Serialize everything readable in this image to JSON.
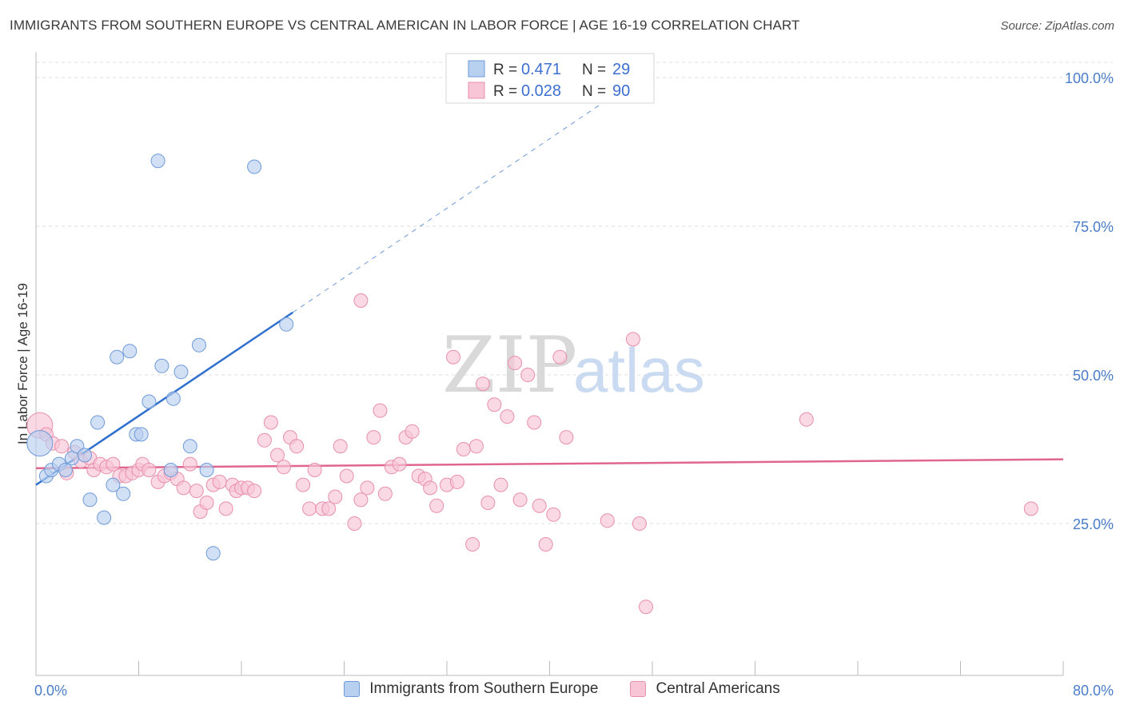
{
  "title": "IMMIGRANTS FROM SOUTHERN EUROPE VS CENTRAL AMERICAN IN LABOR FORCE | AGE 16-19 CORRELATION CHART",
  "source": "Source: ZipAtlas.com",
  "watermark": {
    "zip": "ZIP",
    "atlas": "atlas"
  },
  "legend": {
    "r_label": "R =",
    "n_label": "N =",
    "items": [
      {
        "r": "0.471",
        "n": "29"
      },
      {
        "r": "0.028",
        "n": "90"
      }
    ]
  },
  "colors": {
    "blue_fill": "#b8d0f0",
    "blue_stroke": "#6f9ad8",
    "blue_line": "#2f6fcf",
    "pink_fill": "#f7c5d5",
    "pink_stroke": "#e88fac",
    "pink_line": "#e0668f",
    "tick_text": "#4a7cc8",
    "grid": "#dddddd"
  },
  "chart_data": {
    "type": "scatter",
    "title": "IMMIGRANTS FROM SOUTHERN EUROPE VS CENTRAL AMERICAN IN LABOR FORCE | AGE 16-19 CORRELATION CHART",
    "xlabel": "",
    "ylabel": "In Labor Force | Age 16-19",
    "xlim": [
      0,
      80
    ],
    "ylim": [
      0,
      102
    ],
    "x_tick_labels": [
      "0.0%",
      "80.0%"
    ],
    "y_ticks": [
      25,
      50,
      75,
      100
    ],
    "y_tick_labels": [
      "25.0%",
      "50.0%",
      "75.0%",
      "100.0%"
    ],
    "grid": true,
    "legend_position": "top-center",
    "series": [
      {
        "name": "Immigrants from Southern Europe",
        "color": "#b8d0f0",
        "points": [
          [
            0.3,
            38.5
          ],
          [
            0.8,
            33.0
          ],
          [
            1.2,
            34.0
          ],
          [
            1.8,
            35.0
          ],
          [
            2.3,
            34.0
          ],
          [
            2.8,
            36.0
          ],
          [
            3.2,
            38.0
          ],
          [
            3.8,
            36.5
          ],
          [
            4.2,
            29.0
          ],
          [
            4.8,
            42.0
          ],
          [
            5.3,
            26.0
          ],
          [
            6.0,
            31.5
          ],
          [
            6.3,
            53.0
          ],
          [
            6.8,
            30.0
          ],
          [
            7.3,
            54.0
          ],
          [
            7.8,
            40.0
          ],
          [
            8.2,
            40.0
          ],
          [
            8.8,
            45.5
          ],
          [
            9.5,
            86.0
          ],
          [
            9.8,
            51.5
          ],
          [
            10.7,
            46.0
          ],
          [
            10.5,
            34.0
          ],
          [
            11.3,
            50.5
          ],
          [
            12.0,
            38.0
          ],
          [
            12.7,
            55.0
          ],
          [
            13.3,
            34.0
          ],
          [
            13.8,
            20.0
          ],
          [
            17.0,
            85.0
          ],
          [
            19.5,
            58.5
          ]
        ],
        "trend": {
          "x": [
            0,
            20.0
          ],
          "y": [
            31.5,
            60.5
          ],
          "dashed_to": [
            45.0,
            97.0
          ]
        }
      },
      {
        "name": "Central Americans",
        "color": "#f7c5d5",
        "points": [
          [
            0.3,
            41.5
          ],
          [
            0.8,
            40.0
          ],
          [
            1.3,
            38.5
          ],
          [
            2.0,
            38.0
          ],
          [
            2.4,
            33.5
          ],
          [
            3.0,
            37.0
          ],
          [
            3.5,
            35.5
          ],
          [
            4.2,
            36.0
          ],
          [
            4.5,
            34.0
          ],
          [
            5.0,
            35.0
          ],
          [
            5.5,
            34.5
          ],
          [
            6.0,
            35.0
          ],
          [
            6.5,
            33.0
          ],
          [
            7.0,
            33.0
          ],
          [
            7.5,
            33.5
          ],
          [
            8.0,
            34.0
          ],
          [
            8.3,
            35.0
          ],
          [
            8.8,
            34.0
          ],
          [
            9.5,
            32.0
          ],
          [
            10.0,
            33.0
          ],
          [
            10.5,
            33.5
          ],
          [
            11.0,
            32.5
          ],
          [
            11.5,
            31.0
          ],
          [
            12.0,
            35.0
          ],
          [
            12.5,
            30.5
          ],
          [
            12.8,
            27.0
          ],
          [
            13.3,
            28.5
          ],
          [
            13.8,
            31.5
          ],
          [
            14.3,
            32.0
          ],
          [
            14.8,
            27.5
          ],
          [
            15.3,
            31.5
          ],
          [
            15.6,
            30.5
          ],
          [
            16.0,
            31.0
          ],
          [
            16.5,
            31.0
          ],
          [
            17.0,
            30.5
          ],
          [
            17.8,
            39.0
          ],
          [
            18.3,
            42.0
          ],
          [
            18.8,
            36.5
          ],
          [
            19.3,
            34.5
          ],
          [
            19.8,
            39.5
          ],
          [
            20.3,
            38.0
          ],
          [
            20.8,
            31.5
          ],
          [
            21.3,
            27.5
          ],
          [
            21.7,
            34.0
          ],
          [
            22.3,
            27.5
          ],
          [
            22.8,
            27.5
          ],
          [
            23.3,
            29.5
          ],
          [
            23.7,
            38.0
          ],
          [
            24.2,
            33.0
          ],
          [
            24.8,
            25.0
          ],
          [
            25.3,
            29.0
          ],
          [
            25.8,
            31.0
          ],
          [
            26.3,
            39.5
          ],
          [
            26.8,
            44.0
          ],
          [
            27.2,
            30.0
          ],
          [
            27.7,
            34.5
          ],
          [
            28.3,
            35.0
          ],
          [
            28.8,
            39.5
          ],
          [
            29.3,
            40.5
          ],
          [
            29.8,
            33.0
          ],
          [
            30.3,
            32.5
          ],
          [
            30.7,
            31.0
          ],
          [
            31.2,
            28.0
          ],
          [
            32.0,
            31.5
          ],
          [
            32.5,
            53.0
          ],
          [
            32.8,
            32.0
          ],
          [
            33.3,
            37.5
          ],
          [
            34.0,
            21.5
          ],
          [
            34.3,
            38.0
          ],
          [
            34.8,
            48.5
          ],
          [
            35.2,
            28.5
          ],
          [
            35.7,
            45.0
          ],
          [
            36.2,
            31.5
          ],
          [
            36.7,
            43.0
          ],
          [
            37.3,
            52.0
          ],
          [
            37.7,
            29.0
          ],
          [
            38.3,
            50.0
          ],
          [
            38.8,
            42.0
          ],
          [
            39.2,
            28.0
          ],
          [
            39.7,
            21.5
          ],
          [
            40.3,
            26.5
          ],
          [
            40.8,
            53.0
          ],
          [
            41.3,
            39.5
          ],
          [
            44.5,
            25.5
          ],
          [
            46.5,
            56.0
          ],
          [
            47.0,
            25.0
          ],
          [
            47.5,
            11.0
          ],
          [
            25.3,
            62.5
          ],
          [
            60.0,
            42.5
          ],
          [
            77.5,
            27.5
          ]
        ],
        "trend": {
          "x": [
            0,
            80
          ],
          "y": [
            34.3,
            35.8
          ]
        }
      }
    ]
  },
  "bottom_legend": [
    {
      "label": "Immigrants from Southern Europe"
    },
    {
      "label": "Central Americans"
    }
  ]
}
